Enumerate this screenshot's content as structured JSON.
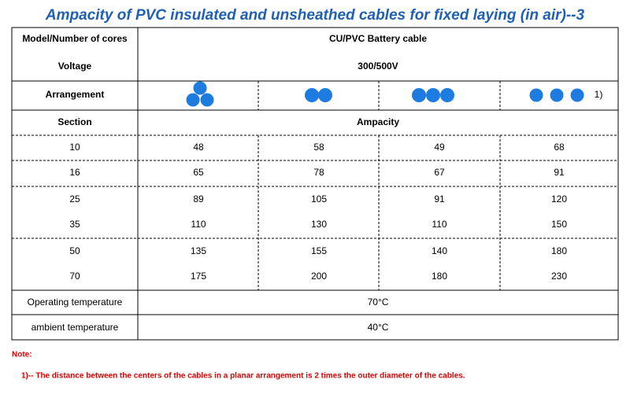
{
  "title": "Ampacity of PVC insulated and unsheathed cables for fixed laying (in air)--3",
  "table": {
    "header": {
      "model_label": "Model/Number of cores",
      "model_value": "CU/PVC Battery cable",
      "voltage_label": "Voltage",
      "voltage_value": "300/500V",
      "arrangement_label": "Arrangement",
      "arrangement_note": "1)",
      "section_label": "Section",
      "ampacity_label": "Ampacity"
    },
    "rows": [
      [
        10,
        48,
        58,
        49,
        68
      ],
      [
        16,
        65,
        78,
        67,
        91
      ],
      [
        25,
        89,
        105,
        91,
        120
      ],
      [
        35,
        110,
        130,
        110,
        150
      ],
      [
        50,
        135,
        155,
        140,
        180
      ],
      [
        70,
        175,
        200,
        180,
        230
      ]
    ],
    "footer": [
      [
        "Operating temperature",
        "70°C"
      ],
      [
        "ambient temperature",
        "40°C"
      ]
    ]
  },
  "notes": {
    "label": "Note:",
    "items": [
      "1)-- The distance between the centers of the cables in a planar arrangement is 2 times the outer diameter of the cables."
    ]
  }
}
